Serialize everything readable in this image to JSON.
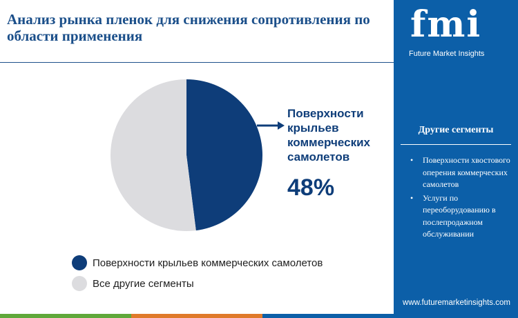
{
  "title": "Анализ рынка пленок для снижения сопротивления по области применения",
  "callout": {
    "label": "Поверхности крыльев коммерческих самолетов",
    "value": "48%"
  },
  "legend": [
    {
      "label": "Поверхности крыльев коммерческих самолетов",
      "color": "#0e3d79"
    },
    {
      "label": "Все другие сегменты",
      "color": "#dcdcdf"
    }
  ],
  "brand": {
    "letters": "fmi",
    "name": "Future Market Insights",
    "url": "www.futuremarketinsights.com"
  },
  "side_panel": {
    "heading": "Другие сегменты",
    "items": [
      "Поверхности хвостового оперения коммерческих самолетов",
      "Услуги по переоборудованию в послепродажном обслуживании"
    ]
  },
  "colors": {
    "accent": "#0e3d79",
    "panel": "#0c5fa8",
    "pie_other": "#dcdcdf",
    "bottom_bar": [
      "#5fa83a",
      "#e07a2a",
      "#0c5fa8"
    ]
  },
  "chart_data": {
    "type": "pie",
    "title": "",
    "slices": [
      {
        "label": "Поверхности крыльев коммерческих самолетов",
        "value": 48,
        "color": "#0e3d79"
      },
      {
        "label": "Все другие сегменты",
        "value": 52,
        "color": "#dcdcdf"
      }
    ],
    "data_labels": [
      "48%"
    ],
    "legend_position": "bottom-left"
  }
}
